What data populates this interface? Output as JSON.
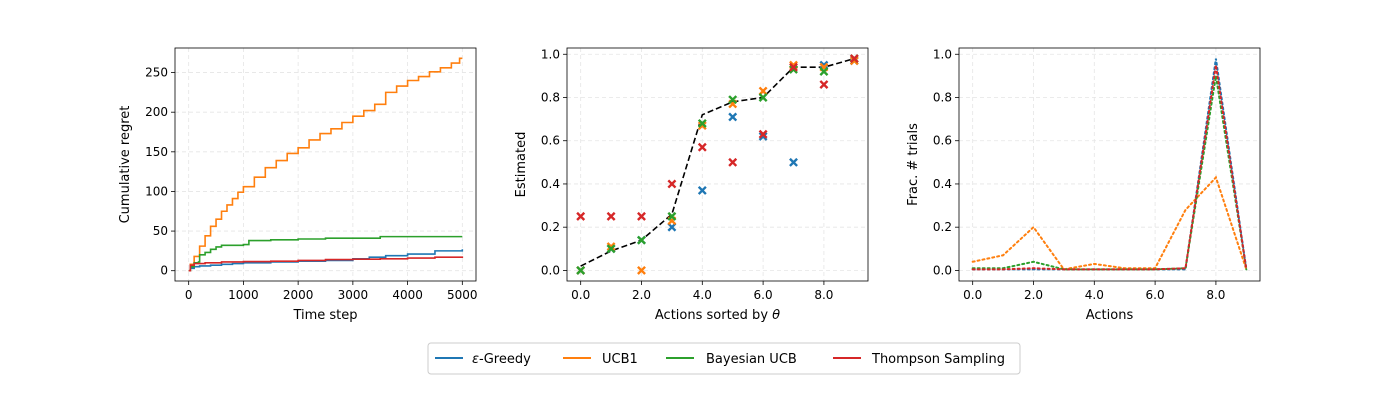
{
  "colors": {
    "epsilon_greedy": "#1f77b4",
    "ucb1": "#ff7f0e",
    "bayesian_ucb": "#2ca02c",
    "thompson": "#d62728",
    "true_theta": "#000000",
    "grid": "#e5e5e5"
  },
  "legend": {
    "placement": "bottom-center",
    "entries": [
      {
        "key": "epsilon_greedy",
        "label_prefix": "ε",
        "label_rest": "-Greedy"
      },
      {
        "key": "ucb1",
        "label": "UCB1"
      },
      {
        "key": "bayesian_ucb",
        "label": "Bayesian UCB"
      },
      {
        "key": "thompson",
        "label": "Thompson Sampling"
      }
    ]
  },
  "chart_data": [
    {
      "type": "line",
      "xlabel": "Time step",
      "ylabel": "Cumulative regret",
      "xlim": [
        -250,
        5250
      ],
      "ylim": [
        -13,
        281
      ],
      "xticks": [
        0,
        1000,
        2000,
        3000,
        4000,
        5000
      ],
      "yticks": [
        0,
        50,
        100,
        150,
        200,
        250
      ],
      "grid": true,
      "series": [
        {
          "key": "epsilon_greedy",
          "x": [
            0,
            30,
            100,
            200,
            400,
            600,
            800,
            1000,
            1500,
            2000,
            2500,
            3000,
            3300,
            3600,
            4000,
            4500,
            5000
          ],
          "y": [
            0,
            3,
            5,
            6,
            7,
            8,
            9,
            10,
            11,
            12,
            13,
            15,
            17,
            19,
            21,
            25,
            27
          ]
        },
        {
          "key": "ucb1",
          "x": [
            0,
            30,
            100,
            200,
            300,
            400,
            500,
            600,
            700,
            800,
            900,
            1000,
            1200,
            1400,
            1600,
            1800,
            2000,
            2200,
            2400,
            2600,
            2800,
            3000,
            3200,
            3400,
            3600,
            3800,
            4000,
            4200,
            4400,
            4600,
            4800,
            4950,
            5000
          ],
          "y": [
            0,
            8,
            18,
            31,
            44,
            56,
            65,
            75,
            83,
            91,
            99,
            106,
            118,
            130,
            139,
            148,
            155,
            165,
            173,
            179,
            187,
            195,
            202,
            210,
            225,
            233,
            240,
            245,
            251,
            256,
            262,
            268,
            268
          ]
        },
        {
          "key": "bayesian_ucb",
          "x": [
            0,
            30,
            100,
            180,
            200,
            300,
            400,
            500,
            600,
            1000,
            1100,
            1500,
            2000,
            2500,
            3000,
            3400,
            3500,
            4000,
            4500,
            5000
          ],
          "y": [
            0,
            5,
            10,
            11,
            20,
            23,
            27,
            30,
            32,
            33,
            38,
            39,
            40,
            41,
            41,
            41,
            43,
            43,
            43,
            43
          ]
        },
        {
          "key": "thompson",
          "x": [
            0,
            30,
            100,
            300,
            600,
            1000,
            1500,
            2000,
            2500,
            3000,
            3500,
            4000,
            4500,
            5000
          ],
          "y": [
            0,
            7,
            9,
            10,
            11,
            11.5,
            12,
            13,
            14,
            14.5,
            15,
            16,
            17,
            18
          ]
        }
      ]
    },
    {
      "type": "scatter",
      "xlabel_prefix": "Actions sorted by ",
      "xlabel_symbol": "θ",
      "ylabel": "Estimated",
      "xlim": [
        -0.45,
        9.45
      ],
      "ylim": [
        -0.049,
        1.029
      ],
      "xticks": [
        0,
        2,
        4,
        6,
        8
      ],
      "yticks": [
        0.0,
        0.2,
        0.4,
        0.6,
        0.8,
        1.0
      ],
      "grid": true,
      "true_theta": {
        "x": [
          0,
          1,
          2,
          3,
          4,
          5,
          6,
          7,
          8,
          9
        ],
        "y": [
          0.02,
          0.09,
          0.14,
          0.26,
          0.72,
          0.78,
          0.8,
          0.94,
          0.94,
          0.98
        ]
      },
      "series": [
        {
          "key": "epsilon_greedy",
          "x": [
            0,
            1,
            2,
            3,
            4,
            5,
            6,
            7,
            8,
            9
          ],
          "y": [
            0.0,
            0.1,
            0.14,
            0.2,
            0.37,
            0.71,
            0.62,
            0.5,
            0.95,
            0.97
          ]
        },
        {
          "key": "ucb1",
          "x": [
            0,
            1,
            2,
            3,
            4,
            5,
            6,
            7,
            8,
            9
          ],
          "y": [
            0.0,
            0.11,
            0.0,
            0.23,
            0.67,
            0.77,
            0.83,
            0.95,
            0.94,
            0.97
          ]
        },
        {
          "key": "bayesian_ucb",
          "x": [
            0,
            1,
            2,
            3,
            4,
            5,
            6,
            7,
            8,
            9
          ],
          "y": [
            0.0,
            0.1,
            0.14,
            0.25,
            0.68,
            0.79,
            0.8,
            0.93,
            0.92,
            0.98
          ]
        },
        {
          "key": "thompson",
          "x": [
            0,
            1,
            2,
            3,
            4,
            5,
            6,
            7,
            8,
            9
          ],
          "y": [
            0.25,
            0.25,
            0.25,
            0.4,
            0.57,
            0.5,
            0.63,
            0.94,
            0.86,
            0.98
          ]
        }
      ]
    },
    {
      "type": "line",
      "style": "dotted",
      "xlabel": "Actions",
      "ylabel": "Frac. # trials",
      "xlim": [
        -0.45,
        9.45
      ],
      "ylim": [
        -0.049,
        1.029
      ],
      "xticks": [
        0,
        2,
        4,
        6,
        8
      ],
      "yticks": [
        0.0,
        0.2,
        0.4,
        0.6,
        0.8,
        1.0
      ],
      "grid": true,
      "series": [
        {
          "key": "epsilon_greedy",
          "x": [
            0,
            1,
            2,
            3,
            4,
            5,
            6,
            7,
            8,
            9
          ],
          "y": [
            0.005,
            0.005,
            0.005,
            0.005,
            0.005,
            0.005,
            0.005,
            0.005,
            0.98,
            0.005
          ]
        },
        {
          "key": "ucb1",
          "x": [
            0,
            1,
            2,
            3,
            4,
            5,
            6,
            7,
            8,
            9
          ],
          "y": [
            0.04,
            0.07,
            0.2,
            0.005,
            0.03,
            0.01,
            0.01,
            0.28,
            0.43,
            0.005
          ]
        },
        {
          "key": "bayesian_ucb",
          "x": [
            0,
            1,
            2,
            3,
            4,
            5,
            6,
            7,
            8,
            9
          ],
          "y": [
            0.01,
            0.01,
            0.04,
            0.005,
            0.005,
            0.005,
            0.005,
            0.01,
            0.9,
            0.005
          ]
        },
        {
          "key": "thompson",
          "x": [
            0,
            1,
            2,
            3,
            4,
            5,
            6,
            7,
            8,
            9
          ],
          "y": [
            0.005,
            0.005,
            0.01,
            0.005,
            0.005,
            0.005,
            0.005,
            0.01,
            0.95,
            0.005
          ]
        }
      ]
    }
  ]
}
